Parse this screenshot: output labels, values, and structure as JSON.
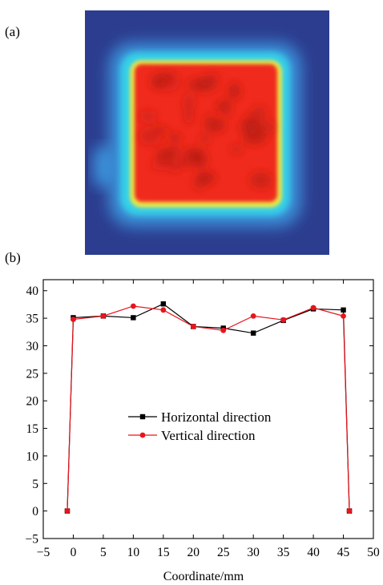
{
  "panels": {
    "a_label": "(a)",
    "b_label": "(b)"
  },
  "heatmap": {
    "colors": {
      "background": "#2c3d8f",
      "outer_glow": "#3a8fd8",
      "cyan": "#35d0e8",
      "yellow": "#e8e84a",
      "hot": "#f02a1c",
      "hot_dark": "#b81c14"
    }
  },
  "chart_data": {
    "type": "line",
    "xlabel": "Coordinate/mm",
    "ylabel": "",
    "xlim": [
      -5,
      50
    ],
    "ylim": [
      -5,
      42
    ],
    "xticks": [
      -5,
      0,
      5,
      10,
      15,
      20,
      25,
      30,
      35,
      40,
      45,
      50
    ],
    "yticks": [
      -5,
      0,
      5,
      10,
      15,
      20,
      25,
      30,
      35,
      40
    ],
    "xtick_labels": [
      "−5",
      "0",
      "5",
      "10",
      "15",
      "20",
      "25",
      "30",
      "35",
      "40",
      "45",
      "50"
    ],
    "ytick_labels": [
      "−5",
      "0",
      "5",
      "10",
      "15",
      "20",
      "25",
      "30",
      "35",
      "40"
    ],
    "legend_position": "center",
    "grid": false,
    "series": [
      {
        "name": "Horizontal direction",
        "color": "#000000",
        "marker": "square",
        "x": [
          -1,
          0,
          5,
          10,
          15,
          20,
          25,
          30,
          35,
          40,
          45,
          46
        ],
        "y": [
          0,
          35.1,
          35.4,
          35.1,
          37.6,
          33.5,
          33.2,
          32.3,
          34.6,
          36.7,
          36.5,
          0
        ]
      },
      {
        "name": "Vertical direction",
        "color": "#e8141c",
        "marker": "circle",
        "x": [
          -1,
          0,
          5,
          10,
          15,
          20,
          25,
          30,
          35,
          40,
          45,
          46
        ],
        "y": [
          0,
          34.8,
          35.4,
          37.2,
          36.5,
          33.5,
          32.8,
          35.4,
          34.7,
          36.9,
          35.4,
          0
        ]
      }
    ]
  }
}
